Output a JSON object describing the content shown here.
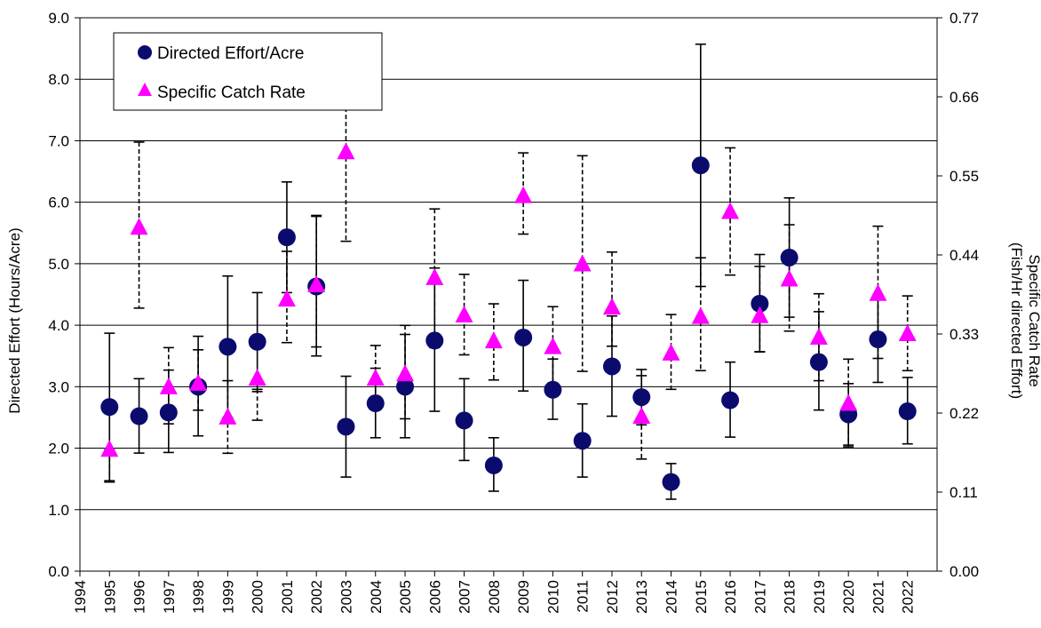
{
  "chart_data": {
    "type": "scatter",
    "ylabel": "Directed Effort (Hours/Acre)",
    "y2label": "Specific Catch Rate",
    "y2label_sub": "(Fish/Hr directed Effort)",
    "ylim": [
      0,
      9
    ],
    "y2lim": [
      0,
      0.77
    ],
    "y_ticks": [
      "0.0",
      "1.0",
      "2.0",
      "3.0",
      "4.0",
      "5.0",
      "6.0",
      "7.0",
      "8.0",
      "9.0"
    ],
    "y2_ticks": [
      "0.00",
      "0.11",
      "0.22",
      "0.33",
      "0.44",
      "0.55",
      "0.66",
      "0.77"
    ],
    "x_ticks": [
      "1994",
      "1995",
      "1996",
      "1997",
      "1998",
      "1999",
      "2000",
      "2001",
      "2002",
      "2003",
      "2004",
      "2005",
      "2006",
      "2007",
      "2008",
      "2009",
      "2010",
      "2011",
      "2012",
      "2013",
      "2014",
      "2015",
      "2016",
      "2017",
      "2018",
      "2019",
      "2020",
      "2021",
      "2022"
    ],
    "grid": "horizontal",
    "legend_position": "top-left",
    "colors": {
      "effort": "#0b0b6e",
      "catch_rate": "#ff00ff",
      "grid": "#000000"
    },
    "series": [
      {
        "name": "Directed Effort/Acre",
        "marker": "circle",
        "axis": "left",
        "error_style": "solid",
        "points": [
          {
            "x": 1995,
            "y": 2.67,
            "low": 1.47,
            "high": 3.87
          },
          {
            "x": 1996,
            "y": 2.52,
            "low": 1.92,
            "high": 3.13
          },
          {
            "x": 1997,
            "y": 2.58,
            "low": 1.93,
            "high": 3.27
          },
          {
            "x": 1998,
            "y": 3.0,
            "low": 2.2,
            "high": 3.82
          },
          {
            "x": 1999,
            "y": 3.65,
            "low": 2.5,
            "high": 4.8
          },
          {
            "x": 2000,
            "y": 3.73,
            "low": 2.92,
            "high": 4.53
          },
          {
            "x": 2001,
            "y": 5.43,
            "low": 4.53,
            "high": 6.33
          },
          {
            "x": 2002,
            "y": 4.63,
            "low": 3.5,
            "high": 5.77
          },
          {
            "x": 2003,
            "y": 2.35,
            "low": 1.53,
            "high": 3.17
          },
          {
            "x": 2004,
            "y": 2.73,
            "low": 2.17,
            "high": 3.3
          },
          {
            "x": 2005,
            "y": 3.0,
            "low": 2.17,
            "high": 3.85
          },
          {
            "x": 2006,
            "y": 3.75,
            "low": 2.6,
            "high": 4.93
          },
          {
            "x": 2007,
            "y": 2.45,
            "low": 1.8,
            "high": 3.13
          },
          {
            "x": 2008,
            "y": 1.72,
            "low": 1.3,
            "high": 2.17
          },
          {
            "x": 2009,
            "y": 3.8,
            "low": 2.93,
            "high": 4.73
          },
          {
            "x": 2010,
            "y": 2.95,
            "low": 2.47,
            "high": 3.45
          },
          {
            "x": 2011,
            "y": 2.12,
            "low": 1.53,
            "high": 2.72
          },
          {
            "x": 2012,
            "y": 3.33,
            "low": 2.52,
            "high": 4.15
          },
          {
            "x": 2013,
            "y": 2.83,
            "low": 2.38,
            "high": 3.28
          },
          {
            "x": 2014,
            "y": 1.45,
            "low": 1.17,
            "high": 1.75
          },
          {
            "x": 2015,
            "y": 6.6,
            "low": 4.63,
            "high": 8.57
          },
          {
            "x": 2016,
            "y": 2.78,
            "low": 2.18,
            "high": 3.4
          },
          {
            "x": 2017,
            "y": 4.35,
            "low": 3.57,
            "high": 5.15
          },
          {
            "x": 2018,
            "y": 5.1,
            "low": 4.13,
            "high": 6.07
          },
          {
            "x": 2019,
            "y": 3.4,
            "low": 2.62,
            "high": 4.22
          },
          {
            "x": 2020,
            "y": 2.55,
            "low": 2.05,
            "high": 3.05
          },
          {
            "x": 2021,
            "y": 3.77,
            "low": 3.07,
            "high": 4.5
          },
          {
            "x": 2022,
            "y": 2.6,
            "low": 2.07,
            "high": 3.15
          }
        ]
      },
      {
        "name": "Specific Catch Rate",
        "marker": "triangle",
        "axis": "right",
        "error_style": "dashed",
        "points": [
          {
            "x": 1995,
            "y": 0.169,
            "low": 0.124,
            "high": 0.169
          },
          {
            "x": 1996,
            "y": 0.478,
            "low": 0.366,
            "high": 0.597
          },
          {
            "x": 1997,
            "y": 0.256,
            "low": 0.205,
            "high": 0.311
          },
          {
            "x": 1998,
            "y": 0.261,
            "low": 0.224,
            "high": 0.308
          },
          {
            "x": 1999,
            "y": 0.214,
            "low": 0.164,
            "high": 0.265
          },
          {
            "x": 2000,
            "y": 0.268,
            "low": 0.21,
            "high": 0.253
          },
          {
            "x": 2001,
            "y": 0.378,
            "low": 0.318,
            "high": 0.445
          },
          {
            "x": 2002,
            "y": 0.398,
            "low": 0.312,
            "high": 0.495
          },
          {
            "x": 2003,
            "y": 0.583,
            "low": 0.459,
            "high": 0.645
          },
          {
            "x": 2004,
            "y": 0.268,
            "low": 0.226,
            "high": 0.314
          },
          {
            "x": 2005,
            "y": 0.274,
            "low": 0.212,
            "high": 0.342
          },
          {
            "x": 2006,
            "y": 0.408,
            "low": 0.311,
            "high": 0.504
          },
          {
            "x": 2007,
            "y": 0.356,
            "low": 0.301,
            "high": 0.413
          },
          {
            "x": 2008,
            "y": 0.32,
            "low": 0.266,
            "high": 0.372
          },
          {
            "x": 2009,
            "y": 0.522,
            "low": 0.469,
            "high": 0.582
          },
          {
            "x": 2010,
            "y": 0.312,
            "low": 0.259,
            "high": 0.368
          },
          {
            "x": 2011,
            "y": 0.427,
            "low": 0.278,
            "high": 0.578
          },
          {
            "x": 2012,
            "y": 0.367,
            "low": 0.313,
            "high": 0.444
          },
          {
            "x": 2013,
            "y": 0.215,
            "low": 0.156,
            "high": 0.272
          },
          {
            "x": 2014,
            "y": 0.303,
            "low": 0.253,
            "high": 0.357
          },
          {
            "x": 2015,
            "y": 0.354,
            "low": 0.279,
            "high": 0.436
          },
          {
            "x": 2016,
            "y": 0.5,
            "low": 0.412,
            "high": 0.589
          },
          {
            "x": 2017,
            "y": 0.355,
            "low": 0.305,
            "high": 0.424
          },
          {
            "x": 2018,
            "y": 0.406,
            "low": 0.334,
            "high": 0.482
          },
          {
            "x": 2019,
            "y": 0.325,
            "low": 0.265,
            "high": 0.386
          },
          {
            "x": 2020,
            "y": 0.233,
            "low": 0.173,
            "high": 0.295
          },
          {
            "x": 2021,
            "y": 0.386,
            "low": 0.296,
            "high": 0.48
          },
          {
            "x": 2022,
            "y": 0.33,
            "low": 0.279,
            "high": 0.383
          }
        ]
      }
    ]
  }
}
